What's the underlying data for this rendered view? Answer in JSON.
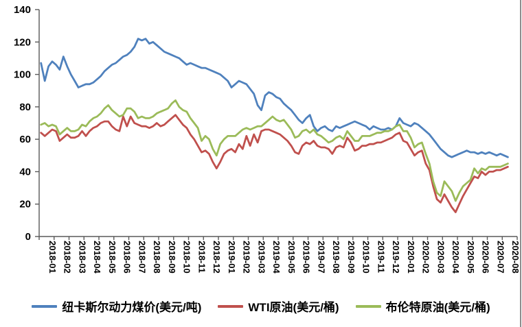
{
  "chart_data": {
    "type": "line",
    "title": "",
    "legend_position": "bottom",
    "grid": false,
    "points_per_month": 4,
    "y_axis": {
      "min": 0,
      "max": 140,
      "tick_step": 20,
      "ticks": [
        0,
        20,
        40,
        60,
        80,
        100,
        120,
        140
      ]
    },
    "x_axis": {
      "label_rotation_deg": 90,
      "labels": [
        "2018-01",
        "2018-02",
        "2018-03",
        "2018-04",
        "2018-05",
        "2018-06",
        "2018-07",
        "2018-08",
        "2018-09",
        "2018-10",
        "2018-11",
        "2018-12",
        "2019-01",
        "2019-02",
        "2019-03",
        "2019-04",
        "2019-05",
        "2019-06",
        "2019-07",
        "2019-08",
        "2019-09",
        "2019-10",
        "2019-11",
        "2019-12",
        "2020-01",
        "2020-02",
        "2020-03",
        "2020-04",
        "2020-05",
        "2020-06",
        "2020-07",
        "2020-08"
      ]
    },
    "series": [
      {
        "name": "纽卡斯尔动力煤价(美元/吨)",
        "color": "#4f81bd",
        "values": [
          107,
          96,
          105,
          108,
          106,
          103,
          111,
          105,
          100,
          96,
          92,
          93,
          94,
          94,
          95,
          97,
          99,
          102,
          104,
          106,
          107,
          109,
          111,
          112,
          114,
          117,
          122,
          121,
          122,
          119,
          120,
          118,
          116,
          114,
          113,
          112,
          111,
          110,
          108,
          106,
          107,
          106,
          105,
          104,
          104,
          103,
          102,
          101,
          100,
          98,
          96,
          92,
          94,
          96,
          95,
          94,
          91,
          88,
          81,
          78,
          87,
          89,
          88,
          86,
          85,
          82,
          80,
          78,
          75,
          72,
          70,
          73,
          75,
          68,
          65,
          67,
          68,
          66,
          65,
          68,
          67,
          68,
          69,
          70,
          71,
          70,
          69,
          68,
          66,
          68,
          67,
          66,
          66,
          67,
          66,
          68,
          73,
          70,
          69,
          68,
          70,
          69,
          67,
          65,
          63,
          60,
          57,
          54,
          52,
          50,
          49,
          50,
          51,
          52,
          53,
          52,
          52,
          51,
          52,
          51,
          52,
          51,
          50,
          51,
          50,
          49
        ]
      },
      {
        "name": "WTI原油(美元/桶)",
        "color": "#c0504d",
        "values": [
          64,
          62,
          64,
          66,
          65,
          59,
          61,
          63,
          61,
          61,
          62,
          65,
          62,
          65,
          67,
          68,
          70,
          71,
          71,
          68,
          66,
          65,
          74,
          68,
          74,
          70,
          69,
          68,
          68,
          67,
          68,
          70,
          68,
          69,
          71,
          73,
          75,
          72,
          69,
          67,
          63,
          60,
          56,
          52,
          53,
          51,
          46,
          42,
          46,
          51,
          53,
          54,
          52,
          57,
          54,
          62,
          56,
          63,
          58,
          65,
          66,
          66,
          65,
          64,
          63,
          61,
          59,
          56,
          52,
          51,
          56,
          58,
          57,
          59,
          56,
          55,
          55,
          54,
          51,
          55,
          56,
          55,
          61,
          58,
          53,
          54,
          56,
          56,
          57,
          57,
          58,
          58,
          59,
          60,
          61,
          63,
          64,
          59,
          58,
          54,
          50,
          52,
          53,
          45,
          41,
          31,
          23,
          21,
          26,
          22,
          18,
          15,
          20,
          25,
          29,
          33,
          37,
          36,
          40,
          38,
          40,
          40,
          41,
          41,
          42,
          43
        ]
      },
      {
        "name": "布伦特原油(美元/桶)",
        "color": "#9bbb59",
        "values": [
          69,
          70,
          68,
          69,
          68,
          63,
          65,
          67,
          65,
          65,
          66,
          69,
          68,
          71,
          73,
          74,
          76,
          79,
          81,
          78,
          76,
          74,
          75,
          79,
          79,
          77,
          73,
          74,
          73,
          73,
          74,
          76,
          77,
          78,
          79,
          82,
          84,
          80,
          78,
          77,
          73,
          70,
          67,
          59,
          62,
          60,
          54,
          50,
          57,
          60,
          62,
          62,
          62,
          64,
          66,
          67,
          66,
          67,
          68,
          68,
          70,
          72,
          74,
          72,
          71,
          72,
          69,
          66,
          61,
          62,
          65,
          66,
          64,
          66,
          63,
          62,
          60,
          58,
          59,
          61,
          62,
          60,
          65,
          62,
          59,
          59,
          62,
          62,
          62,
          63,
          64,
          64,
          65,
          65,
          66,
          68,
          69,
          65,
          65,
          61,
          55,
          57,
          58,
          51,
          45,
          34,
          27,
          25,
          34,
          31,
          28,
          22,
          27,
          31,
          33,
          35,
          42,
          39,
          42,
          41,
          43,
          43,
          43,
          43,
          44,
          45
        ]
      }
    ],
    "axis_color": "#595959"
  }
}
